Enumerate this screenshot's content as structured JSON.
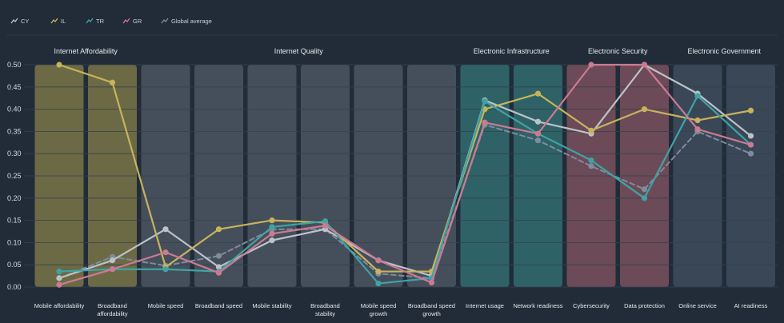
{
  "chart_data": {
    "type": "line",
    "legend": {
      "placement": "top-left",
      "items": [
        {
          "label": "CY",
          "color": "#bcc2c9"
        },
        {
          "label": "IL",
          "color": "#c7b35c"
        },
        {
          "label": "TR",
          "color": "#3fa3a6"
        },
        {
          "label": "GR",
          "color": "#cc7a92"
        },
        {
          "label": "Global average",
          "color": "#7d8c9f"
        }
      ]
    },
    "ylim": [
      0,
      0.5
    ],
    "yticks": [
      "0.00",
      "0.05",
      "0.10",
      "0.15",
      "0.20",
      "0.25",
      "0.30",
      "0.35",
      "0.40",
      "0.45",
      "0.50"
    ],
    "grid": true,
    "categories": [
      [
        "Mobile affordability"
      ],
      [
        "Broadband",
        "affordability"
      ],
      [
        "Mobile speed"
      ],
      [
        "Broadband speed"
      ],
      [
        "Mobile stability"
      ],
      [
        "Broadband",
        "stability"
      ],
      [
        "Mobile speed",
        "growth"
      ],
      [
        "Broadband speed",
        "growth"
      ],
      [
        "Internet usage"
      ],
      [
        "Network readiness"
      ],
      [
        "Cybersecurity"
      ],
      [
        "Data protection"
      ],
      [
        "Online service"
      ],
      [
        "AI readiness"
      ]
    ],
    "groups": [
      {
        "label": "Internet Affordability",
        "start": 0,
        "end": 1,
        "color": "#6b6a45"
      },
      {
        "label": "Internet Quality",
        "start": 2,
        "end": 7,
        "color": "#454f5b"
      },
      {
        "label": "Electronic Infrastructure",
        "start": 8,
        "end": 9,
        "color": "#2f6266"
      },
      {
        "label": "Electronic Security",
        "start": 10,
        "end": 11,
        "color": "#6c4a57"
      },
      {
        "label": "Electronic Government",
        "start": 12,
        "end": 13,
        "color": "#3a4757"
      }
    ],
    "series": [
      {
        "name": "Global average",
        "color": "#7d8c9f",
        "dashed": true,
        "values": [
          0.02,
          0.068,
          0.048,
          0.07,
          0.13,
          0.13,
          0.03,
          0.02,
          0.365,
          0.33,
          0.272,
          0.22,
          0.35,
          0.3
        ]
      },
      {
        "name": "CY",
        "color": "#bcc2c9",
        "dashed": false,
        "values": [
          0.02,
          0.06,
          0.13,
          0.045,
          0.105,
          0.13,
          0.06,
          0.025,
          0.42,
          0.372,
          0.345,
          0.5,
          0.435,
          0.34
        ]
      },
      {
        "name": "IL",
        "color": "#c7b35c",
        "dashed": false,
        "values": [
          0.5,
          0.46,
          0.045,
          0.13,
          0.15,
          0.145,
          0.035,
          0.035,
          0.4,
          0.435,
          0.352,
          0.4,
          0.375,
          0.397
        ]
      },
      {
        "name": "TR",
        "color": "#3fa3a6",
        "dashed": false,
        "values": [
          0.035,
          0.04,
          0.04,
          0.035,
          0.135,
          0.148,
          0.008,
          0.02,
          0.418,
          0.345,
          0.285,
          0.2,
          0.43,
          0.32
        ]
      },
      {
        "name": "GR",
        "color": "#cc7a92",
        "dashed": false,
        "values": [
          0.005,
          0.04,
          0.078,
          0.032,
          0.12,
          0.138,
          0.06,
          0.01,
          0.37,
          0.345,
          0.5,
          0.5,
          0.355,
          0.32
        ]
      }
    ]
  }
}
